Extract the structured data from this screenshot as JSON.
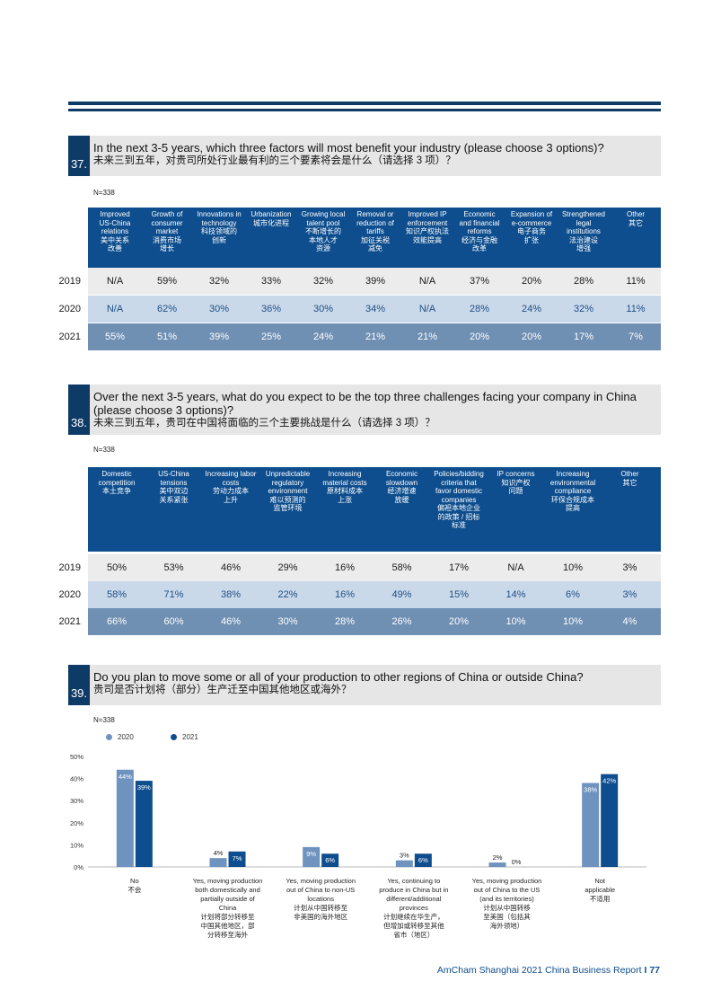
{
  "q37": {
    "number": "37.",
    "question_en": "In the next 3-5 years, which three factors will most benefit your industry (please choose 3 options)?",
    "question_zh": "未来三到五年，对贵司所处行业最有利的三个要素将会是什么（请选择 3 项）？",
    "n": "N=338",
    "headers": [
      "Improved\nUS-China\nrelations\n美中关系\n改善",
      "Growth of\nconsumer\nmarket\n消费市场\n增长",
      "Innovations in\ntechnology\n科技领域的\n创新",
      "Urbanization\n城市化进程",
      "Growing local\ntalent pool\n不断增长的\n本地人才\n资源",
      "Removal or\nreduction of\ntariffs\n加征关税\n减免",
      "Improved IP\nenforcement\n知识产权执法\n效能提高",
      "Economic\nand financial\nreforms\n经济与金融\n改革",
      "Expansion of\ne-commerce\n电子商务\n扩张",
      "Strengthened\nlegal institutions\n法治建设\n增强",
      "Other\n其它"
    ],
    "rows": [
      {
        "year": "2019",
        "values": [
          "N/A",
          "59%",
          "32%",
          "33%",
          "32%",
          "39%",
          "N/A",
          "37%",
          "20%",
          "28%",
          "11%"
        ]
      },
      {
        "year": "2020",
        "values": [
          "N/A",
          "62%",
          "30%",
          "36%",
          "30%",
          "34%",
          "N/A",
          "28%",
          "24%",
          "32%",
          "11%"
        ]
      },
      {
        "year": "2021",
        "values": [
          "55%",
          "51%",
          "39%",
          "25%",
          "24%",
          "21%",
          "21%",
          "20%",
          "20%",
          "17%",
          "7%"
        ]
      }
    ]
  },
  "q38": {
    "number": "38.",
    "question_en": "Over the next 3-5 years, what do you expect to be the top three challenges facing your company in China (please choose 3 options)?",
    "question_zh": "未来三到五年，贵司在中国将面临的三个主要挑战是什么（请选择 3 项）？",
    "n": "N=338",
    "headers": [
      "Domestic\ncompetition\n本土竞争",
      "US-China\ntensions\n美中双边\n关系紧张",
      "Increasing labor\ncosts\n劳动力成本\n上升",
      "Unpredictable\nregulatory\nenvironment\n难以预测的\n监管环境",
      "Increasing\nmaterial costs\n原材料成本\n上涨",
      "Economic\nslowdown\n经济增速\n放缓",
      "Policies/bidding\ncriteria that\nfavor domestic\ncompanies\n偏袒本地企业\n的政策 / 招标\n标准",
      "IP concerns\n知识产权\n问题",
      "Increasing\nenvironmental\ncompliance\n环保合规成本\n提高",
      "Other\n其它"
    ],
    "rows": [
      {
        "year": "2019",
        "values": [
          "50%",
          "53%",
          "46%",
          "29%",
          "16%",
          "58%",
          "17%",
          "N/A",
          "10%",
          "3%"
        ]
      },
      {
        "year": "2020",
        "values": [
          "58%",
          "71%",
          "38%",
          "22%",
          "16%",
          "49%",
          "15%",
          "14%",
          "6%",
          "3%"
        ]
      },
      {
        "year": "2021",
        "values": [
          "66%",
          "60%",
          "46%",
          "30%",
          "28%",
          "26%",
          "20%",
          "10%",
          "10%",
          "4%"
        ]
      }
    ]
  },
  "q39": {
    "number": "39.",
    "question_en": "Do you plan to move some or all of your production to other regions of China or outside China?",
    "question_zh": "贵司是否计划将（部分）生产迁至中国其他地区或海外？",
    "n": "N=338",
    "legend": [
      "2020",
      "2021"
    ]
  },
  "chart_data": {
    "type": "bar",
    "categories": [
      "No\n不会",
      "Yes, moving production\nboth domestically and\npartially outside of\nChina\n计划将部分转移至\n中国其他地区，部\n分转移至海外",
      "Yes, moving production\nout of China to non-US\nlocations\n计划从中国转移至\n非美国的海外地区",
      "Yes, continuing to\nproduce in China but in\ndifferent/additional\nprovinces\n计划继续在华生产，\n但增加或转移至其他\n省市（地区）",
      "Yes, moving production\nout of China to the US\n(and its territories)\n计划从中国转移\n至美国（包括其\n海外领地）",
      "Not\napplicable\n不适用"
    ],
    "series": [
      {
        "name": "2020",
        "values": [
          44,
          4,
          9,
          3,
          2,
          38
        ],
        "labels": [
          "44%",
          "4%",
          "9%",
          "3%",
          "2%",
          "38%"
        ]
      },
      {
        "name": "2021",
        "values": [
          39,
          7,
          6,
          6,
          0,
          42
        ],
        "labels": [
          "39%",
          "7%",
          "6%",
          "6%",
          "0%",
          "42%"
        ]
      }
    ],
    "yticks": [
      "0%",
      "10%",
      "20%",
      "30%",
      "40%",
      "50%"
    ],
    "ylim": [
      0,
      50
    ],
    "colors": {
      "2020": "#6f93bf",
      "2021": "#0e4e8e"
    }
  },
  "footer": {
    "report": "AmCham Shanghai 2021 China Business Report",
    "page": "77"
  }
}
